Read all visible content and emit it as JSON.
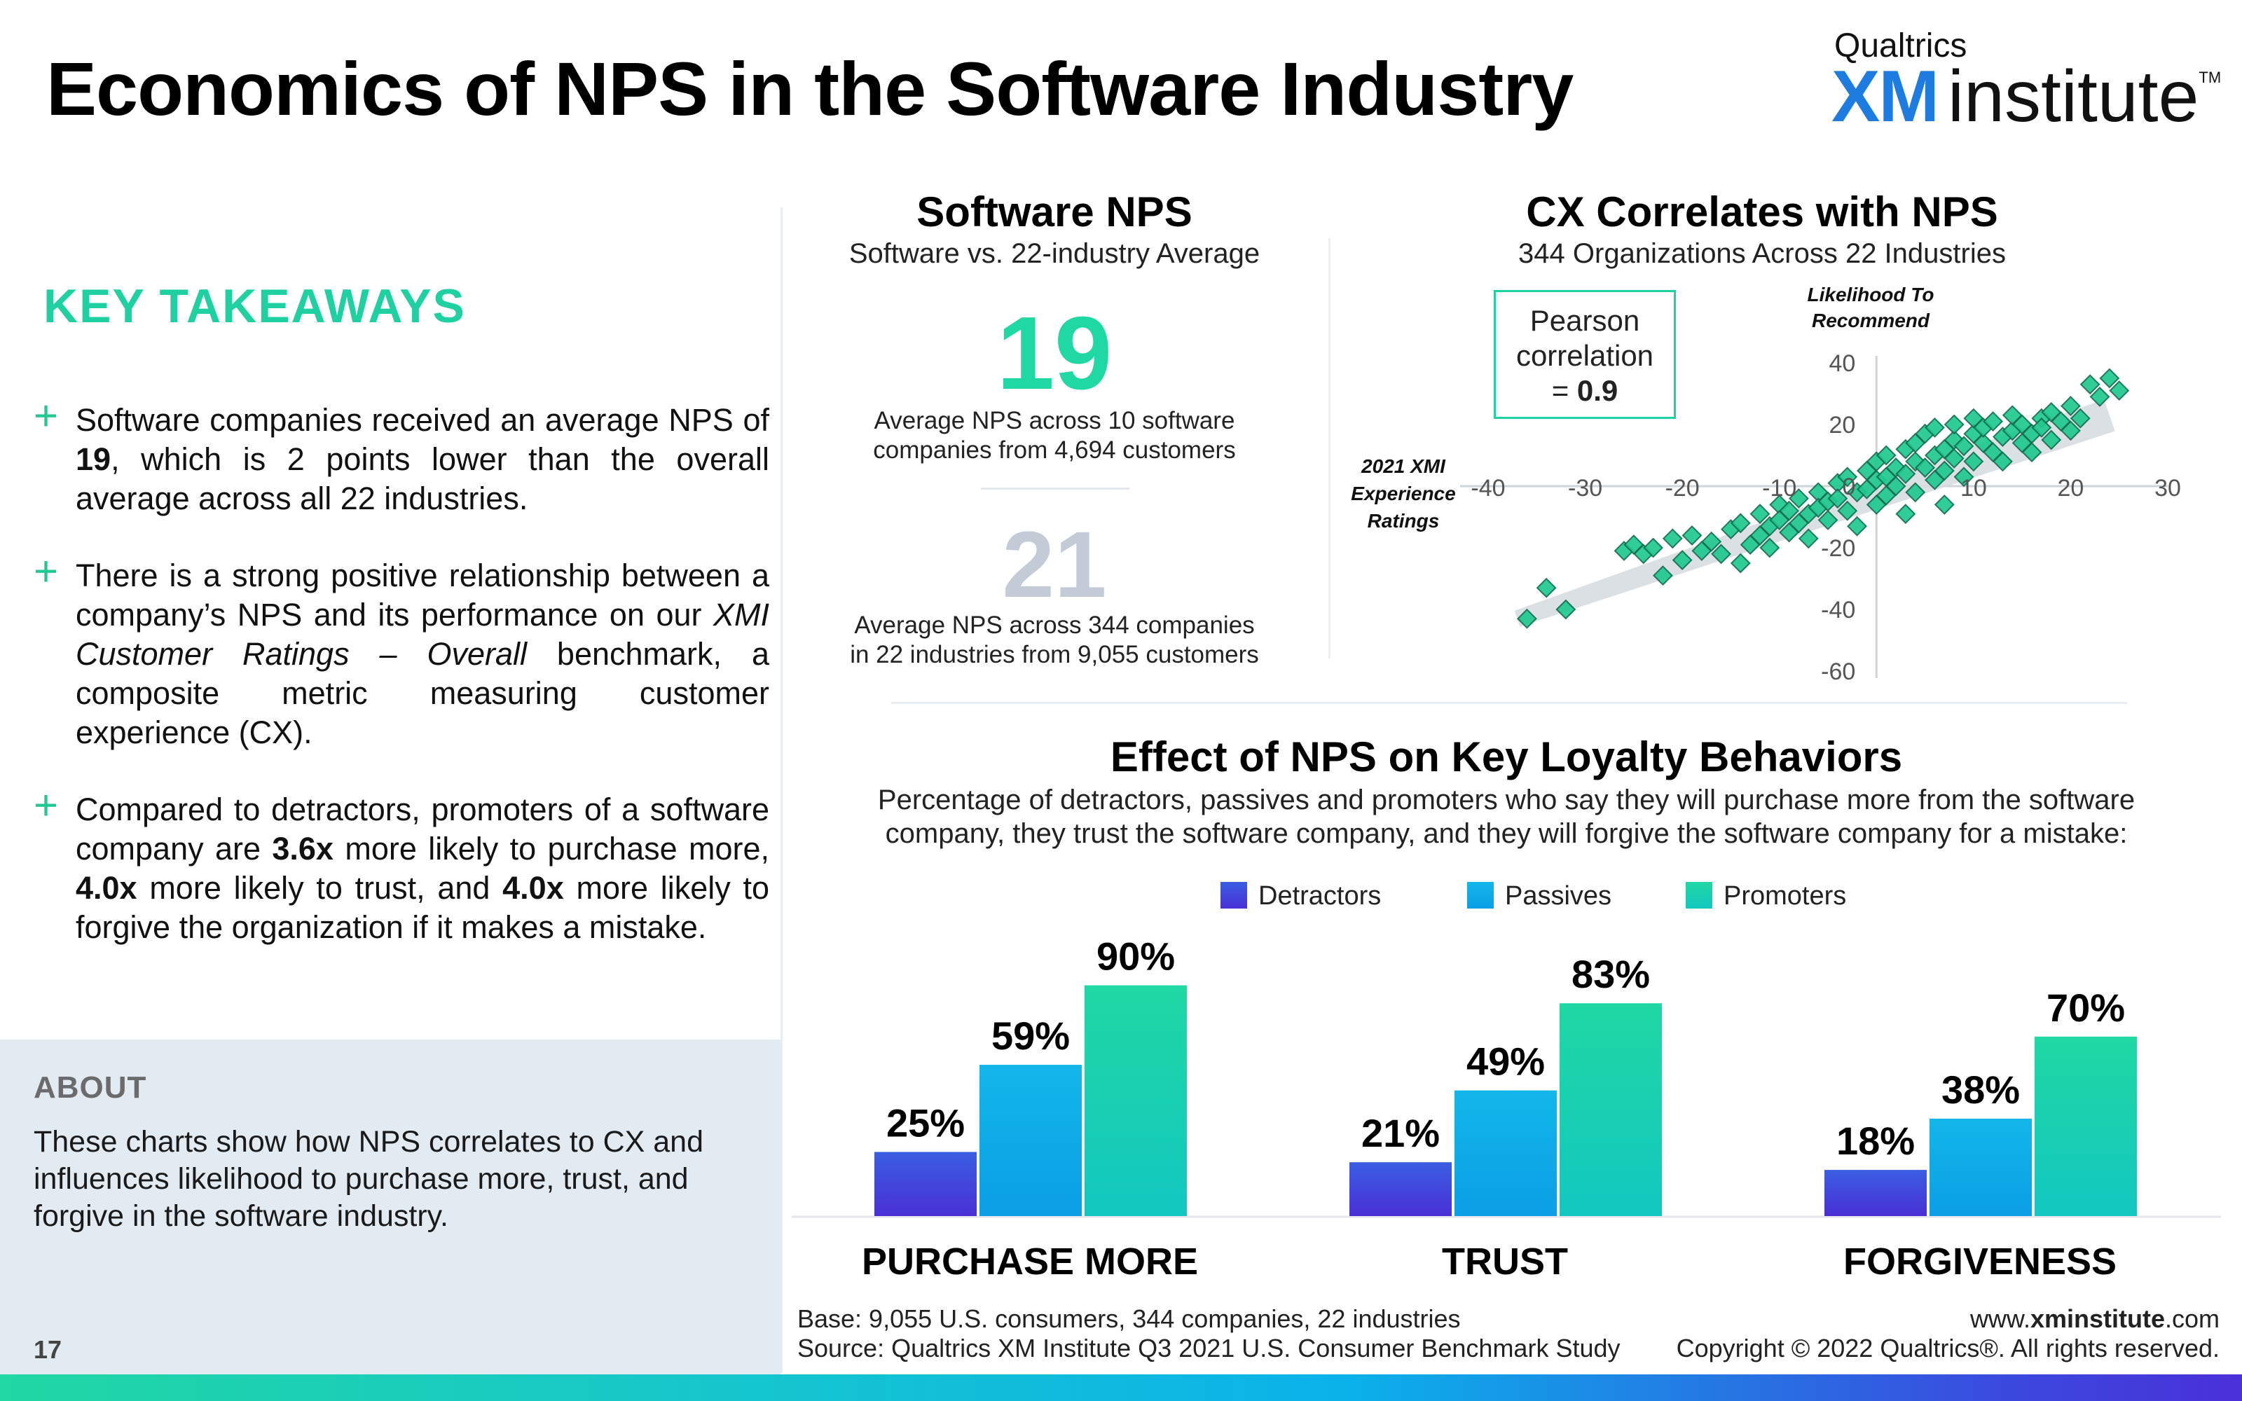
{
  "header": {
    "title": "Economics of NPS in the Software Industry",
    "logo_small": "Qualtrics",
    "logo_xm": "XM",
    "logo_institute": "institute",
    "logo_tm": "TM"
  },
  "takeaways": {
    "heading": "KEY TAKEAWAYS",
    "bullet_symbol": "+",
    "bullets": [
      {
        "html": "Software companies received an average NPS of <b>19</b>, which is 2 points lower than the overall average across all 22 industries."
      },
      {
        "html": "There is a strong positive relationship between a company’s NPS and its performance on our <i>XMI Customer Ratings – Overall</i> benchmark, a composite metric measuring customer experience (CX)."
      },
      {
        "html": "Compared to detractors, promoters of a software company are <b>3.6x</b> more likely to purchase more, <b>4.0x</b> more likely to trust, and <b>4.0x</b> more likely to forgive the organization if it makes a mistake."
      }
    ]
  },
  "about": {
    "heading": "ABOUT",
    "text": "These charts show how NPS correlates to CX and influences likelihood to purchase more, trust, and forgive in the software industry."
  },
  "page_number": "17",
  "software_nps": {
    "title": "Software NPS",
    "subtitle": "Software vs. 22-industry Average",
    "software_value": "19",
    "software_desc_1": "Average NPS across 10 software",
    "software_desc_2": "companies from 4,694 customers",
    "avg_value": "21",
    "avg_desc_1": "Average NPS across 344 companies",
    "avg_desc_2": "in 22 industries from 9,055 customers"
  },
  "cx_corr": {
    "title": "CX Correlates with NPS",
    "subtitle": "344 Organizations Across 22 Industries",
    "pearson_1": "Pearson",
    "pearson_2": "correlation",
    "pearson_3": "= ",
    "pearson_value": "0.9",
    "y_label_1": "Likelihood To",
    "y_label_2": "Recommend",
    "x_label_1": "2021 XMI",
    "x_label_2": "Experience",
    "x_label_3": "Ratings"
  },
  "loyalty": {
    "title": "Effect of NPS on Key Loyalty Behaviors",
    "subtitle": "Percentage of detractors, passives and promoters who say they will purchase more from the software company, they trust the software company, and they will forgive the software company for a mistake:",
    "legend": [
      "Detractors",
      "Passives",
      "Promoters"
    ]
  },
  "colors": {
    "accent_green": "#1fd8a3",
    "detractors": "#4a2fd6",
    "passives": "#0bb3e9",
    "promoters": "#1fd8a3",
    "scatter_point": "#20c98f"
  },
  "chart_data": [
    {
      "type": "scatter",
      "title": "CX Correlates with NPS",
      "xlabel": "2021 XMI Experience Ratings",
      "ylabel": "Likelihood To Recommend",
      "xlim": [
        -40,
        30
      ],
      "ylim": [
        -60,
        40
      ],
      "x_ticks": [
        -40,
        -30,
        -20,
        -10,
        0,
        10,
        20,
        30
      ],
      "y_ticks": [
        40,
        20,
        0,
        -20,
        -40,
        -60
      ],
      "grid": false,
      "pearson_correlation": 0.9,
      "trend_band": [
        [
          -37,
          -43
        ],
        [
          24,
          23
        ]
      ],
      "points": [
        [
          -36,
          -43
        ],
        [
          -34,
          -33
        ],
        [
          -32,
          -40
        ],
        [
          -26,
          -21
        ],
        [
          -25,
          -19
        ],
        [
          -24,
          -22
        ],
        [
          -23,
          -20
        ],
        [
          -22,
          -29
        ],
        [
          -21,
          -17
        ],
        [
          -20,
          -24
        ],
        [
          -19,
          -16
        ],
        [
          -18,
          -21
        ],
        [
          -17,
          -18
        ],
        [
          -16,
          -22
        ],
        [
          -15,
          -14
        ],
        [
          -14,
          -25
        ],
        [
          -14,
          -12
        ],
        [
          -13,
          -19
        ],
        [
          -12,
          -9
        ],
        [
          -12,
          -16
        ],
        [
          -11,
          -20
        ],
        [
          -11,
          -13
        ],
        [
          -10,
          -6
        ],
        [
          -10,
          -11
        ],
        [
          -9,
          -15
        ],
        [
          -9,
          -8
        ],
        [
          -8,
          -4
        ],
        [
          -8,
          -12
        ],
        [
          -7,
          -9
        ],
        [
          -7,
          -17
        ],
        [
          -6,
          -2
        ],
        [
          -6,
          -7
        ],
        [
          -5,
          -11
        ],
        [
          -5,
          -5
        ],
        [
          -4,
          1
        ],
        [
          -4,
          -4
        ],
        [
          -3,
          -8
        ],
        [
          -3,
          3
        ],
        [
          -2,
          -2
        ],
        [
          -2,
          -13
        ],
        [
          -1,
          5
        ],
        [
          -1,
          -1
        ],
        [
          0,
          2
        ],
        [
          0,
          -6
        ],
        [
          0,
          8
        ],
        [
          1,
          3
        ],
        [
          1,
          -3
        ],
        [
          1,
          10
        ],
        [
          2,
          6
        ],
        [
          2,
          0
        ],
        [
          3,
          12
        ],
        [
          3,
          4
        ],
        [
          3,
          -9
        ],
        [
          4,
          8
        ],
        [
          4,
          14
        ],
        [
          4,
          -2
        ],
        [
          5,
          6
        ],
        [
          5,
          17
        ],
        [
          6,
          10
        ],
        [
          6,
          2
        ],
        [
          6,
          19
        ],
        [
          7,
          12
        ],
        [
          7,
          5
        ],
        [
          7,
          -6
        ],
        [
          8,
          15
        ],
        [
          8,
          9
        ],
        [
          8,
          20
        ],
        [
          9,
          13
        ],
        [
          9,
          3
        ],
        [
          10,
          17
        ],
        [
          10,
          8
        ],
        [
          10,
          22
        ],
        [
          11,
          14
        ],
        [
          11,
          19
        ],
        [
          12,
          11
        ],
        [
          12,
          21
        ],
        [
          13,
          16
        ],
        [
          13,
          8
        ],
        [
          14,
          18
        ],
        [
          14,
          23
        ],
        [
          15,
          14
        ],
        [
          15,
          20
        ],
        [
          16,
          17
        ],
        [
          16,
          11
        ],
        [
          17,
          22
        ],
        [
          17,
          19
        ],
        [
          18,
          15
        ],
        [
          18,
          24
        ],
        [
          19,
          21
        ],
        [
          20,
          18
        ],
        [
          20,
          26
        ],
        [
          21,
          22
        ],
        [
          22,
          33
        ],
        [
          23,
          29
        ],
        [
          24,
          35
        ],
        [
          25,
          31
        ]
      ]
    },
    {
      "type": "bar",
      "title": "Effect of NPS on Key Loyalty Behaviors",
      "categories": [
        "PURCHASE MORE",
        "TRUST",
        "FORGIVENESS"
      ],
      "series": [
        {
          "name": "Detractors",
          "values": [
            25,
            21,
            18
          ]
        },
        {
          "name": "Passives",
          "values": [
            59,
            49,
            38
          ]
        },
        {
          "name": "Promoters",
          "values": [
            90,
            83,
            70
          ]
        }
      ],
      "ylim": [
        0,
        100
      ],
      "value_suffix": "%",
      "legend_position": "top"
    }
  ],
  "footer": {
    "base": "Base: 9,055 U.S. consumers, 344 companies, 22 industries",
    "source": "Source: Qualtrics XM Institute Q3 2021 U.S. Consumer Benchmark Study",
    "url_prefix": "www.",
    "url_bold": "xminstitute",
    "url_suffix": ".com",
    "copyright": "Copyright © 2022 Qualtrics®. All rights reserved."
  }
}
